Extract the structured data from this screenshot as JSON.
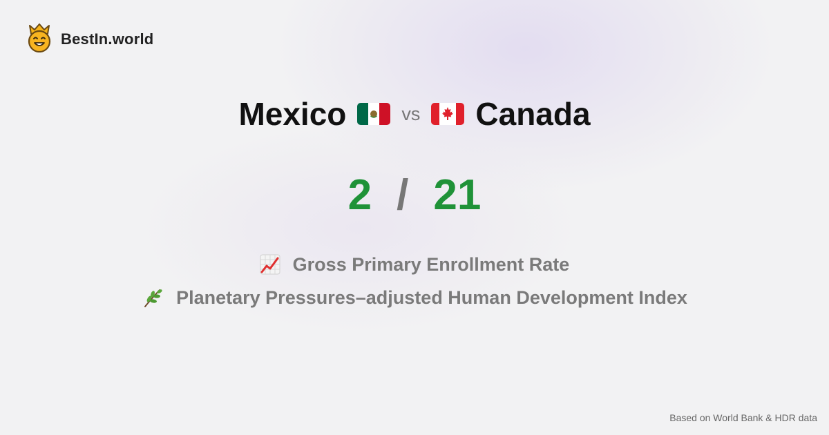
{
  "brand": {
    "name": "BestIn.world",
    "logo_icon": "crown-smiley-icon"
  },
  "comparison": {
    "left": {
      "name": "Mexico",
      "flag_icon": "mexico-flag-icon"
    },
    "separator": "vs",
    "right": {
      "name": "Canada",
      "flag_icon": "canada-flag-icon"
    }
  },
  "score": {
    "left": "2",
    "separator": "/",
    "right": "21",
    "color": "#1f9238"
  },
  "metrics": [
    {
      "icon": "chart-increasing-icon",
      "label": "Gross Primary Enrollment Rate"
    },
    {
      "icon": "herb-icon",
      "label": "Planetary Pressures–adjusted Human Development Index"
    }
  ],
  "footer": {
    "source": "Based on World Bank & HDR data"
  }
}
